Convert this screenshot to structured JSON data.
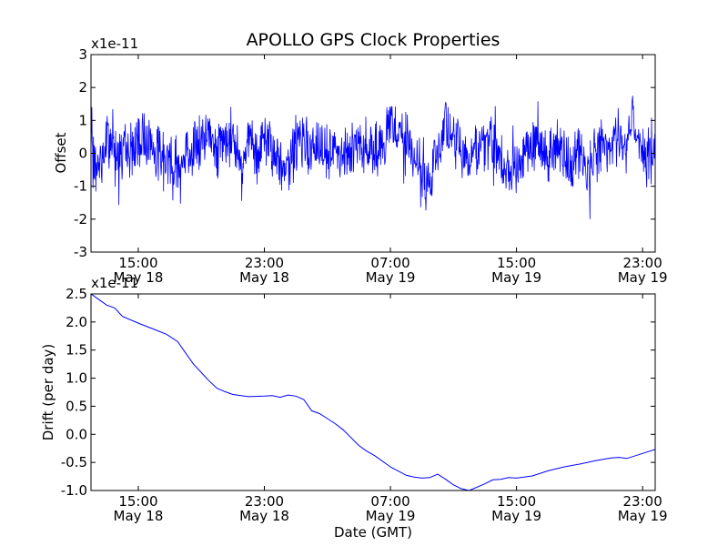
{
  "title": "APOLLO GPS Clock Properties",
  "xlabel": "Date (GMT)",
  "colors": {
    "series": "#0000ff",
    "frame": "#000000",
    "background": "#ffffff"
  },
  "x_ticks": [
    {
      "t": 15,
      "time": "15:00",
      "date": "May 18"
    },
    {
      "t": 23,
      "time": "23:00",
      "date": "May 18"
    },
    {
      "t": 31,
      "time": "07:00",
      "date": "May 19"
    },
    {
      "t": 39,
      "time": "15:00",
      "date": "May 19"
    },
    {
      "t": 47,
      "time": "23:00",
      "date": "May 19"
    }
  ],
  "chart_data": [
    {
      "type": "line",
      "name": "offset",
      "ylabel": "Offset",
      "exponent_label": "x1e-11",
      "xlim_hours": [
        12,
        47.8
      ],
      "ylim": [
        -3,
        3
      ],
      "ytick_labels": [
        "-3",
        "-2",
        "-1",
        "0",
        "1",
        "2",
        "3"
      ],
      "series": [
        {
          "name": "Offset",
          "noisy": true,
          "x": [
            12,
            12.4,
            13,
            13.5,
            14,
            14.5,
            15,
            15.5,
            16,
            16.8,
            17.5,
            18,
            18.8,
            19.5,
            20,
            20.5,
            21,
            21.5,
            22,
            22.5,
            23,
            23.5,
            24,
            24.5,
            25,
            25.5,
            26,
            27,
            28,
            29,
            30,
            30.5,
            31,
            31.5,
            32,
            32.5,
            33,
            33.5,
            34,
            34.5,
            35,
            35.3,
            35.6,
            36,
            36.5,
            37,
            37.5,
            38,
            38.5,
            39,
            39.5,
            40,
            40.5,
            41,
            41.5,
            42,
            42.5,
            43,
            43.5,
            44,
            44.5,
            45,
            45.5,
            46,
            46.3,
            46.6,
            47,
            47.4,
            47.8
          ],
          "y": [
            0.0,
            -0.6,
            0.4,
            0.2,
            0.0,
            0.1,
            0.3,
            0.6,
            0.1,
            -0.1,
            -0.4,
            0.0,
            0.3,
            0.5,
            0.2,
            0.3,
            0.6,
            -0.2,
            0.4,
            -0.3,
            0.5,
            0.0,
            -0.2,
            -0.5,
            0.3,
            0.4,
            0.1,
            0.1,
            0.0,
            0.3,
            0.1,
            0.0,
            0.9,
            0.7,
            0.3,
            0.0,
            -0.8,
            -1.0,
            0.2,
            0.8,
            0.4,
            0.2,
            -0.1,
            -0.3,
            0.2,
            0.3,
            0.1,
            0.0,
            -0.7,
            -0.4,
            0.2,
            0.3,
            0.1,
            0.0,
            0.2,
            0.1,
            -0.3,
            0.0,
            -0.6,
            0.2,
            0.3,
            0.1,
            0.4,
            0.2,
            1.3,
            0.6,
            0.2,
            -0.4,
            0.3
          ]
        }
      ]
    },
    {
      "type": "line",
      "name": "drift",
      "ylabel": "Drift (per day)",
      "exponent_label": "x1e-11",
      "xlim_hours": [
        12,
        47.8
      ],
      "ylim": [
        -1.0,
        2.5
      ],
      "ytick_labels": [
        "-1.0",
        "-0.5",
        "0.0",
        "0.5",
        "1.0",
        "1.5",
        "2.0",
        "2.5"
      ],
      "series": [
        {
          "name": "Drift",
          "x": [
            12,
            12.5,
            13,
            13.5,
            14,
            15,
            16,
            16.8,
            17.5,
            18,
            18.5,
            19,
            19.5,
            20,
            20.5,
            21,
            22,
            23,
            23.5,
            24,
            24.5,
            25,
            25.5,
            26,
            26.5,
            27,
            27.5,
            28,
            29,
            29.5,
            30,
            31,
            32,
            32.5,
            33,
            33.5,
            34,
            34.5,
            35,
            35.5,
            36,
            37,
            37.5,
            38,
            38.5,
            39,
            40,
            41,
            42,
            43,
            44,
            45,
            45.5,
            46,
            47,
            47.8
          ],
          "y": [
            2.5,
            2.4,
            2.3,
            2.25,
            2.1,
            1.98,
            1.87,
            1.78,
            1.65,
            1.45,
            1.25,
            1.1,
            0.95,
            0.82,
            0.76,
            0.71,
            0.67,
            0.68,
            0.69,
            0.66,
            0.7,
            0.68,
            0.62,
            0.42,
            0.37,
            0.28,
            0.19,
            0.08,
            -0.2,
            -0.3,
            -0.38,
            -0.58,
            -0.73,
            -0.76,
            -0.78,
            -0.77,
            -0.71,
            -0.8,
            -0.9,
            -0.97,
            -1.0,
            -0.88,
            -0.81,
            -0.8,
            -0.77,
            -0.78,
            -0.74,
            -0.65,
            -0.58,
            -0.53,
            -0.47,
            -0.42,
            -0.41,
            -0.43,
            -0.34,
            -0.27
          ]
        }
      ]
    }
  ]
}
